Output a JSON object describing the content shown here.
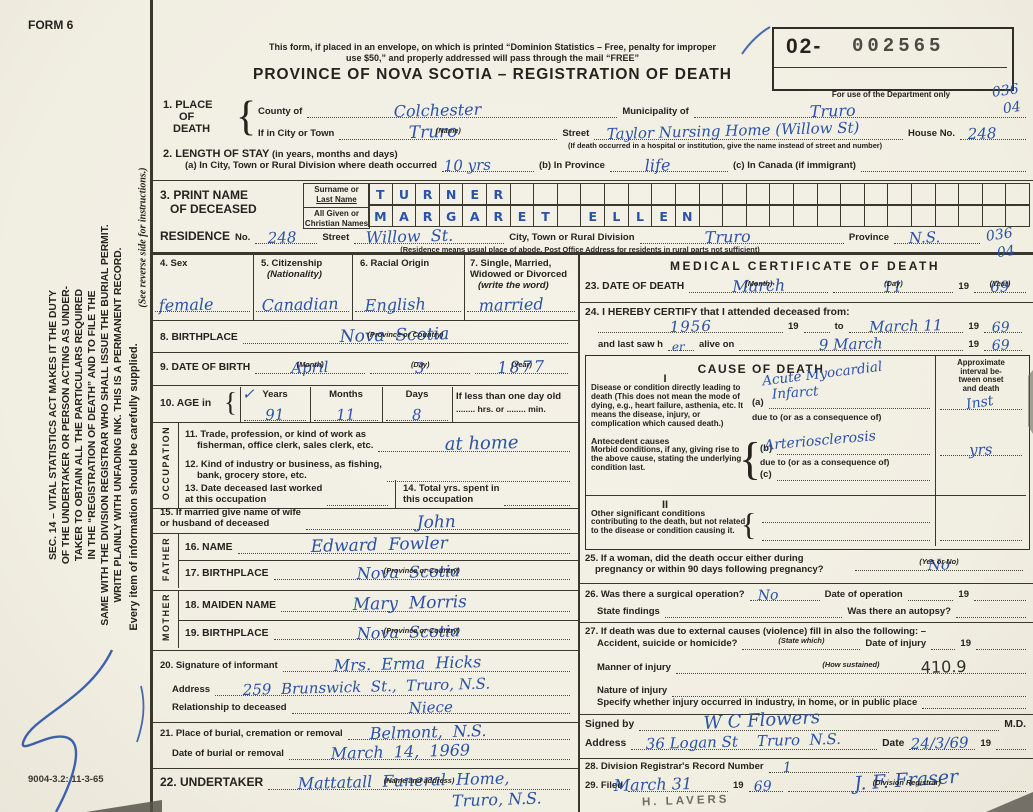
{
  "meta": {
    "form_no": "FORM 6",
    "print_code": "9004-3.2: 11-3-65"
  },
  "margin": {
    "sec14_lines": [
      "SEC. 14 – VITAL STATISTICS ACT MAKES IT THE DUTY",
      "OF THE UNDERTAKER OR PERSON ACTING AS UNDER-",
      "TAKER TO OBTAIN ALL THE PARTICULARS REQUIRED",
      "IN THE “REGISTRATION OF DEATH” AND TO FILE THE",
      "SAME WITH THE DIVISION REGISTRAR WHO SHALL ISSUE THE BURIAL PERMIT.",
      "WRITE PLAINLY WITH UNFADING INK. THIS IS A PERMANENT RECORD."
    ],
    "reverse_note": "(See reverse side for instructions.)",
    "every_item": "Every item of information should be carefully supplied."
  },
  "header": {
    "mail_line1": "This form, if placed in an envelope, on which is printed “Dominion Statistics – Free, penalty for improper",
    "mail_line2": "use $50,” and properly addressed will pass through the mail “FREE”",
    "title": "PROVINCE OF NOVA SCOTIA – REGISTRATION OF DEATH",
    "stamp_prefix": "02-",
    "stamp_number": "002565",
    "dept_note": "For use of the Department only",
    "code_main": "036",
    "code_sub": "04"
  },
  "glyphs": {
    "brace": "{",
    "check": "✓"
  },
  "captions": {
    "month": "(Month)",
    "day": "(Day)",
    "year": "(Year)",
    "name": "(Name)",
    "province_or_country": "(Province or Country)",
    "yes_or_no": "(Yes or No)",
    "state_which": "(State which)",
    "how_sustained": "(How sustained)",
    "name_and_address": "(Name and address)",
    "division_registrar": "(Division Registrar)",
    "nineteen": "19"
  },
  "place": {
    "label_l1": "1. PLACE",
    "label_l2": "OF",
    "label_l3": "DEATH",
    "county_label": "County of",
    "county": "Colchester",
    "municipality_label": "Municipality of",
    "municipality": "Truro",
    "city_label": "If in City or Town",
    "city": "Truro",
    "street_label": "Street",
    "street": "Taylor Nursing Home (Willow St)",
    "house_label": "House No.",
    "house_no": "248",
    "street_caption": "(If death occurred in a hospital or institution, give the name instead of street and number)"
  },
  "stay": {
    "label": "2. LENGTH OF STAY",
    "label_sub": "(in years, months and days)",
    "a_label": "(a) In City, Town or Rural Division where death occurred",
    "a_value": "10 yrs",
    "b_label": "(b) In Province",
    "b_value": "life",
    "c_label": "(c) In Canada (if immigrant)"
  },
  "deceased_name": {
    "label_l1": "3. PRINT NAME",
    "label_l2": "OF DECEASED",
    "surname_label_l1": "Surname or",
    "surname_label_l2": "Last Name",
    "surname": "TURNER",
    "given_label_l1": "All Given or",
    "given_label_l2": "Christian Names",
    "given": "MARGARET ELLEN"
  },
  "residence": {
    "label": "RESIDENCE",
    "no_label": "No.",
    "no": "248",
    "street_label": "Street",
    "street": "Willow  St.",
    "city_label": "City, Town or Rural Division",
    "city": "Truro",
    "province_label": "Province",
    "province": "N.S.",
    "caption": "(Residence means usual place of abode. Post Office Address for residents in rural parts not sufficient)",
    "code_main": "036",
    "code_sub": "04"
  },
  "personal": {
    "sex_label": "4. Sex",
    "sex": "female",
    "citizenship_label": "5. Citizenship",
    "citizenship_sub": "(Nationality)",
    "citizenship": "Canadian",
    "racial_label": "6. Racial Origin",
    "racial": "English",
    "marital_l1": "7. Single, Married,",
    "marital_l2": "Widowed or Divorced",
    "marital_sub": "(write the word)",
    "marital": "married",
    "birthplace_label": "8. BIRTHPLACE",
    "birthplace": "Nova  Scotia",
    "dob_label": "9. DATE OF BIRTH",
    "dob_month": "April",
    "dob_day": "3",
    "dob_year": "1877",
    "age_label": "10. AGE in",
    "age_years_label": "Years",
    "age_years": "91",
    "age_months_label": "Months",
    "age_months": "11",
    "age_days_label": "Days",
    "age_days": "8",
    "age_less_l1": "If less than one day old",
    "age_less_l2": "........ hrs. or ........ min."
  },
  "occupation": {
    "side_label": "OCCUPATION",
    "q11_l1": "11. Trade, profession, or kind of work as",
    "q11_l2": "fisherman, office clerk, sales clerk, etc.",
    "q11_value": "at home",
    "q12_l1": "12. Kind of industry or business, as fishing,",
    "q12_l2": "bank, grocery store, etc.",
    "q13_l1": "13. Date deceased last worked",
    "q13_l2": "at this occupation",
    "q14_l1": "14. Total yrs. spent in",
    "q14_l2": "this occupation",
    "q15_l1": "15. If married give name of wife",
    "q15_l2": "or husband of deceased",
    "q15_value": "John"
  },
  "father": {
    "side_label": "FATHER",
    "name_label": "16. NAME",
    "name": "Edward  Fowler",
    "birthplace_label": "17. BIRTHPLACE",
    "birthplace": "Nova  Scotia"
  },
  "mother": {
    "side_label": "MOTHER",
    "maiden_label": "18. MAIDEN NAME",
    "maiden": "Mary  Morris",
    "birthplace_label": "19. BIRTHPLACE",
    "birthplace": "Nova  Scotia"
  },
  "informant": {
    "label": "20. Signature of informant",
    "signature": "Mrs.  Erma  Hicks",
    "address_label": "Address",
    "address": "259  Brunswick  St.,  Truro, N.S.",
    "relationship_label": "Relationship to deceased",
    "relationship": "Niece"
  },
  "burial": {
    "place_label": "21. Place of burial, cremation or removal",
    "place": "Belmont,  N.S.",
    "date_label": "Date of burial or removal",
    "date": "March  14,  1969"
  },
  "undertaker": {
    "label": "22. UNDERTAKER",
    "value_l1": "Mattatall  Funeral  Home,",
    "value_l2": "Truro, N.S."
  },
  "medical": {
    "title": "MEDICAL CERTIFICATE OF DEATH",
    "q23_label": "23. DATE OF DEATH",
    "q23_month": "March",
    "q23_day": "11",
    "q23_year": "69",
    "q24_label": "24. I HEREBY CERTIFY that I attended deceased from:",
    "q24_from": "1956",
    "q24_to_word": "to",
    "q24_to": "March 11",
    "q24_to_year": "69",
    "q24_lastsaw": "and last saw h",
    "q24_h_fill": "er",
    "q24_alive": "alive on",
    "q24_last_date": "9 March",
    "q24_last_year": "69"
  },
  "cause": {
    "title": "CAUSE OF DEATH",
    "interval_l1": "Approximate",
    "interval_l2": "interval be-",
    "interval_l3": "tween onset",
    "interval_l4": "and death",
    "part1": "I",
    "disease_bold": "Disease or condition directly leading to death ",
    "disease_rest": "(This does not mean the mode of dying, e.g., heart failure, asthenia, etc. It means the disease, injury, or complication which caused death.)",
    "a_label": "(a)",
    "a_value_l1": "Acute Myocardial",
    "a_value_l2": "Infarct",
    "a_interval": "Inst",
    "due_to": "due to (or as a consequence of)",
    "antecedent_bold": "Antecedent causes",
    "antecedent_rest": "Morbid conditions, if any, giving rise to the above cause, stating the underlying condition last.",
    "b_label": "(b)",
    "b_value": "Arteriosclerosis",
    "b_interval": "yrs",
    "c_label": "(c)",
    "part2": "II",
    "other_bold": "Other significant conditions",
    "other_rest": "contributing to the death, but not related to the disease or condition causing it."
  },
  "q25": {
    "l1": "25. If a woman, did the death occur either during",
    "l2": "pregnancy or within 90 days following pregnancy?",
    "value": "No"
  },
  "q26": {
    "label": "26. Was there a surgical operation?",
    "value": "No",
    "date_label": "Date of operation",
    "findings_label": "State findings",
    "autopsy_label": "Was there an autopsy?"
  },
  "q27": {
    "header": "27. If death was due to external causes (violence) fill in also the following: –",
    "accident_label": "Accident, suicide or homicide?",
    "date_label": "Date of injury",
    "manner_label": "Manner of injury",
    "manner_code": "410.9",
    "nature_label": "Nature of injury",
    "specify_label": "Specify whether injury occurred in industry, in home, or in public place"
  },
  "certifier": {
    "signed_label": "Signed by",
    "signature": "W C Flowers",
    "md": "M.D.",
    "address_label": "Address",
    "address": "36 Logan St    Truro  N.S.",
    "date_label": "Date",
    "date": "24/3/69"
  },
  "registrar": {
    "q28_label": "28. Division Registrar's Record Number",
    "q28_value": "1",
    "q29_label": "29. Filed",
    "q29_date": "March 31",
    "q29_year": "69",
    "signature": "J. F. Fraser",
    "pencil": "H. LAVERS"
  }
}
